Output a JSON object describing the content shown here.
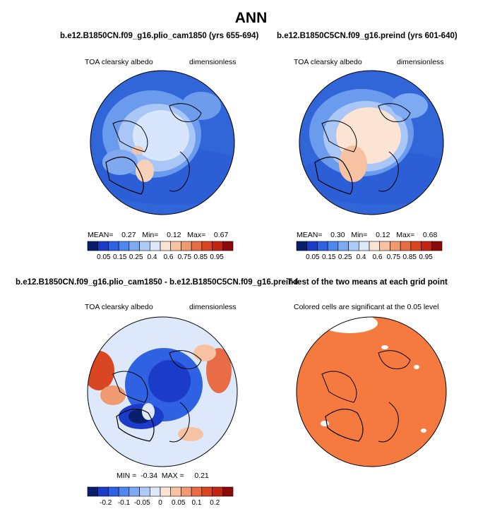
{
  "main_title": "ANN",
  "panels": [
    {
      "title": "b.e12.B1850CN.f09_g16.plio_cam1850 (yrs 655-694)",
      "left_label": "TOA clearsky albedo",
      "right_label": "dimensionless",
      "stats": {
        "mean_label": "MEAN=",
        "mean": "0.27",
        "min_label": "Min=",
        "min": "0.12",
        "max_label": "Max=",
        "max": "0.67"
      }
    },
    {
      "title": "b.e12.B1850C5CN.f09_g16.preind (yrs 601-640)",
      "left_label": "TOA clearsky albedo",
      "right_label": "dimensionless",
      "stats": {
        "mean_label": "MEAN=",
        "mean": "0.30",
        "min_label": "Min=",
        "min": "0.12",
        "max_label": "Max=",
        "max": "0.68"
      }
    },
    {
      "title": "b.e12.B1850CN.f09_g16.plio_cam1850 - b.e12.B1850C5CN.f09_g16.preind",
      "left_label": "TOA clearsky albedo",
      "right_label": "dimensionless",
      "stats": {
        "min_label": "MIN =",
        "min": "-0.34",
        "max_label": "MAX =",
        "max": "0.21"
      }
    },
    {
      "title": "T-test of the two means at each grid point",
      "left_label": "Colored cells are significant at the 0.05 level",
      "right_label": ""
    }
  ],
  "colorbars": {
    "absolute": {
      "ticks": [
        "0.05",
        "0.15",
        "0.25",
        "0.4",
        "0.6",
        "0.75",
        "0.85",
        "0.95"
      ],
      "colors": [
        "#08206b",
        "#1a3cc8",
        "#2e62e2",
        "#4f86f0",
        "#7eaaf4",
        "#aecbf7",
        "#dde9fb",
        "#fbe4d4",
        "#f6c2a2",
        "#f09a72",
        "#e86d46",
        "#da4522",
        "#c42412",
        "#8c0a0a"
      ]
    },
    "difference": {
      "ticks": [
        "-0.2",
        "-0.1",
        "-0.05",
        "0",
        "0.05",
        "0.1",
        "0.2"
      ],
      "colors": [
        "#08206b",
        "#1a3cc8",
        "#2e62e2",
        "#4f86f0",
        "#7eaaf4",
        "#aecbf7",
        "#dde9fb",
        "#fbe4d4",
        "#f6c2a2",
        "#f09a72",
        "#e86d46",
        "#da4522",
        "#c42412",
        "#8c0a0a"
      ]
    }
  },
  "chart_data": [
    {
      "type": "heatmap",
      "title": "b.e12.B1850CN.f09_g16.plio_cam1850 (yrs 655-694)",
      "variable": "TOA clearsky albedo",
      "units": "dimensionless",
      "projection": "polar",
      "mean": 0.27,
      "min": 0.12,
      "max": 0.67,
      "levels": [
        0.05,
        0.1,
        0.15,
        0.2,
        0.25,
        0.3,
        0.4,
        0.5,
        0.6,
        0.7,
        0.75,
        0.8,
        0.85,
        0.9,
        0.95
      ]
    },
    {
      "type": "heatmap",
      "title": "b.e12.B1850C5CN.f09_g16.preind (yrs 601-640)",
      "variable": "TOA clearsky albedo",
      "units": "dimensionless",
      "projection": "polar",
      "mean": 0.3,
      "min": 0.12,
      "max": 0.68,
      "levels": [
        0.05,
        0.1,
        0.15,
        0.2,
        0.25,
        0.3,
        0.4,
        0.5,
        0.6,
        0.7,
        0.75,
        0.8,
        0.85,
        0.9,
        0.95
      ]
    },
    {
      "type": "heatmap",
      "title": "b.e12.B1850CN.f09_g16.plio_cam1850 - b.e12.B1850C5CN.f09_g16.preind",
      "variable": "TOA clearsky albedo",
      "units": "dimensionless",
      "projection": "polar",
      "min": -0.34,
      "max": 0.21,
      "levels": [
        -0.2,
        -0.1,
        -0.05,
        0,
        0.05,
        0.1,
        0.2
      ]
    },
    {
      "type": "heatmap",
      "title": "T-test of the two means at each grid point",
      "projection": "polar",
      "note": "Colored cells are significant at the 0.05 level",
      "significance_level": 0.05
    }
  ]
}
